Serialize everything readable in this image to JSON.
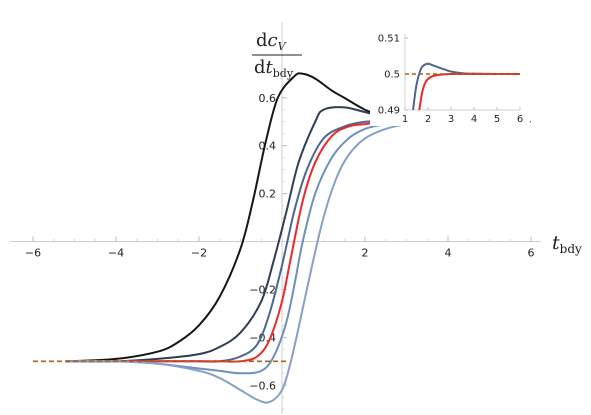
{
  "chart_data": [
    {
      "type": "line",
      "xlabel": {
        "main": "t",
        "sub": "bdy"
      },
      "ylabel": {
        "numerator": {
          "d": "d",
          "main": "c",
          "sub": "V"
        },
        "denominator": {
          "d": "d",
          "main": "t",
          "sub": "bdy"
        }
      },
      "xlim": [
        -6,
        6
      ],
      "ylim": [
        -0.72,
        0.72
      ],
      "x_ticks": [
        -6,
        -4,
        -2,
        2,
        4,
        6
      ],
      "x_tick_labels": [
        "−6",
        "−4",
        "−2",
        "2",
        "4",
        "6"
      ],
      "y_ticks": [
        -0.6,
        -0.4,
        -0.2,
        0.2,
        0.4,
        0.6
      ],
      "y_tick_labels": [
        "−0.6",
        "−0.4",
        "−0.2",
        "0.2",
        "0.4",
        "0.6"
      ],
      "grid": false,
      "colors": {
        "black": "#14161c",
        "dark_navy": "#2f3e57",
        "slate_blue": "#4b6690",
        "red": "#ee2828",
        "light_blue": "#6f8fbd",
        "pale_blue": "#86a0c8",
        "dashed": "#b0601a"
      },
      "series": [
        {
          "color_key": "black",
          "x": [
            -5.2,
            -4,
            -3,
            -2.5,
            -2,
            -1.5,
            -1,
            -0.7,
            -0.4,
            -0.1,
            0.3,
            0.5,
            0.8,
            1.2,
            1.5,
            2,
            2.5,
            3,
            4,
            5.4
          ],
          "y": [
            -0.5,
            -0.49,
            -0.46,
            -0.42,
            -0.35,
            -0.23,
            -0.03,
            0.17,
            0.41,
            0.6,
            0.69,
            0.7,
            0.68,
            0.63,
            0.6,
            0.55,
            0.52,
            0.51,
            0.5,
            0.5
          ]
        },
        {
          "color_key": "dark_navy",
          "x": [
            -5.2,
            -4,
            -3,
            -2,
            -1.5,
            -1,
            -0.5,
            -0.2,
            0.1,
            0.4,
            0.8,
            1,
            1.5,
            2,
            2.5,
            3,
            4,
            5.4
          ],
          "y": [
            -0.5,
            -0.5,
            -0.49,
            -0.47,
            -0.44,
            -0.38,
            -0.25,
            -0.08,
            0.12,
            0.33,
            0.5,
            0.55,
            0.56,
            0.54,
            0.52,
            0.51,
            0.5,
            0.5
          ]
        },
        {
          "color_key": "slate_blue",
          "x": [
            -5.2,
            -4,
            -3,
            -2,
            -1.5,
            -1,
            -0.6,
            -0.3,
            0,
            0.3,
            0.6,
            1,
            1.5,
            2,
            2.5,
            3,
            4,
            5.4
          ],
          "y": [
            -0.5,
            -0.5,
            -0.5,
            -0.5,
            -0.5,
            -0.48,
            -0.43,
            -0.3,
            -0.1,
            0.13,
            0.3,
            0.43,
            0.48,
            0.5,
            0.5,
            0.5,
            0.5,
            0.5
          ]
        },
        {
          "color_key": "red",
          "x": [
            -5.2,
            -4,
            -3,
            -2,
            -1.5,
            -1,
            -0.6,
            -0.3,
            0,
            0.2,
            0.5,
            0.8,
            1.2,
            1.6,
            2,
            2.5,
            3,
            4,
            5.4
          ],
          "y": [
            -0.5,
            -0.5,
            -0.5,
            -0.5,
            -0.5,
            -0.5,
            -0.48,
            -0.41,
            -0.25,
            -0.08,
            0.17,
            0.33,
            0.44,
            0.48,
            0.49,
            0.5,
            0.5,
            0.5,
            0.5
          ]
        },
        {
          "color_key": "light_blue",
          "x": [
            -5.2,
            -4,
            -3,
            -2,
            -1.5,
            -1,
            -0.5,
            -0.2,
            0.1,
            0.3,
            0.5,
            0.8,
            1.2,
            1.6,
            2,
            2.5,
            3,
            4,
            5.4
          ],
          "y": [
            -0.5,
            -0.5,
            -0.51,
            -0.53,
            -0.54,
            -0.55,
            -0.54,
            -0.48,
            -0.34,
            -0.18,
            0,
            0.2,
            0.35,
            0.43,
            0.47,
            0.49,
            0.5,
            0.5,
            0.5
          ]
        },
        {
          "color_key": "pale_blue",
          "x": [
            -5.2,
            -4,
            -3,
            -2,
            -1.5,
            -1,
            -0.6,
            -0.3,
            0,
            0.2,
            0.4,
            0.7,
            1,
            1.3,
            1.6,
            2,
            2.5,
            3,
            3.5,
            4,
            5.4
          ],
          "y": [
            -0.5,
            -0.5,
            -0.51,
            -0.54,
            -0.57,
            -0.62,
            -0.66,
            -0.67,
            -0.62,
            -0.51,
            -0.36,
            -0.12,
            0.1,
            0.26,
            0.36,
            0.43,
            0.47,
            0.49,
            0.5,
            0.5,
            0.5
          ]
        }
      ],
      "reference_lines": [
        {
          "y": 0.5,
          "x_range": [
            2.5,
            6
          ],
          "style": "dashed",
          "color_key": "dashed"
        },
        {
          "y": -0.5,
          "x_range": [
            -6,
            0.1
          ],
          "style": "dashed",
          "color_key": "dashed"
        }
      ]
    },
    {
      "type": "line",
      "role": "inset",
      "xlim": [
        1,
        6
      ],
      "ylim": [
        0.49,
        0.51
      ],
      "x_ticks": [
        1,
        2,
        3,
        4,
        5,
        6
      ],
      "x_tick_labels": [
        "1",
        "2",
        "3",
        "4",
        "5",
        "6"
      ],
      "y_ticks": [
        0.49,
        0.5,
        0.51
      ],
      "y_tick_labels": [
        "0.49",
        "0.5",
        "0.51"
      ],
      "grid": false,
      "series": [
        {
          "color_key": "slate_blue",
          "x": [
            1.35,
            1.5,
            1.7,
            1.9,
            2.05,
            2.3,
            2.7,
            3,
            3.5,
            4,
            5,
            6
          ],
          "y": [
            0.49,
            0.497,
            0.5015,
            0.5027,
            0.5028,
            0.5022,
            0.5013,
            0.5007,
            0.5002,
            0.5001,
            0.5,
            0.5
          ]
        },
        {
          "color_key": "red",
          "x": [
            1.62,
            1.75,
            1.9,
            2.1,
            2.4,
            2.7,
            3,
            3.5,
            4,
            5,
            6
          ],
          "y": [
            0.49,
            0.495,
            0.4978,
            0.4991,
            0.4997,
            0.4999,
            0.5,
            0.5,
            0.5,
            0.5,
            0.5
          ]
        }
      ],
      "reference_lines": [
        {
          "y": 0.5,
          "x_range": [
            1,
            6
          ],
          "style": "dashed",
          "color_key": "dashed"
        }
      ]
    }
  ]
}
